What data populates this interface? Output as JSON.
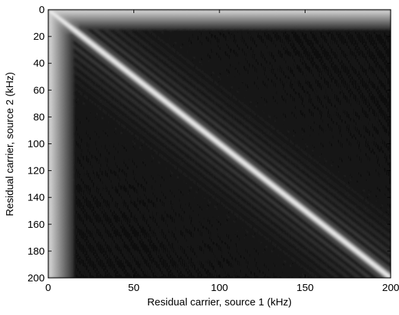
{
  "chart_data": {
    "type": "heatmap",
    "title": "",
    "xlabel": "Residual carrier, source 1 (kHz)",
    "ylabel": "Residual carrier, source 2 (kHz)",
    "xlim": [
      0,
      200
    ],
    "ylim": [
      0,
      200
    ],
    "y_direction": "top-to-bottom",
    "x_ticks": [
      0,
      50,
      100,
      150,
      200
    ],
    "y_ticks": [
      0,
      20,
      40,
      60,
      80,
      100,
      120,
      140,
      160,
      180,
      200
    ],
    "colormap": "grayscale (black = low, white = high)",
    "colors": {
      "low": "#111111",
      "high": "#f4f4f4"
    },
    "features": {
      "main_ridge": {
        "from": [
          0,
          0
        ],
        "to": [
          200,
          200
        ],
        "intensity": "white"
      },
      "side_lobes": "parallel gray stripes on both sides of the main ridge, decaying away from it",
      "edge_band_x": {
        "x_max": 15,
        "intensity": "light gray"
      },
      "edge_band_y": {
        "y_max": 15,
        "intensity": "light gray"
      }
    }
  }
}
